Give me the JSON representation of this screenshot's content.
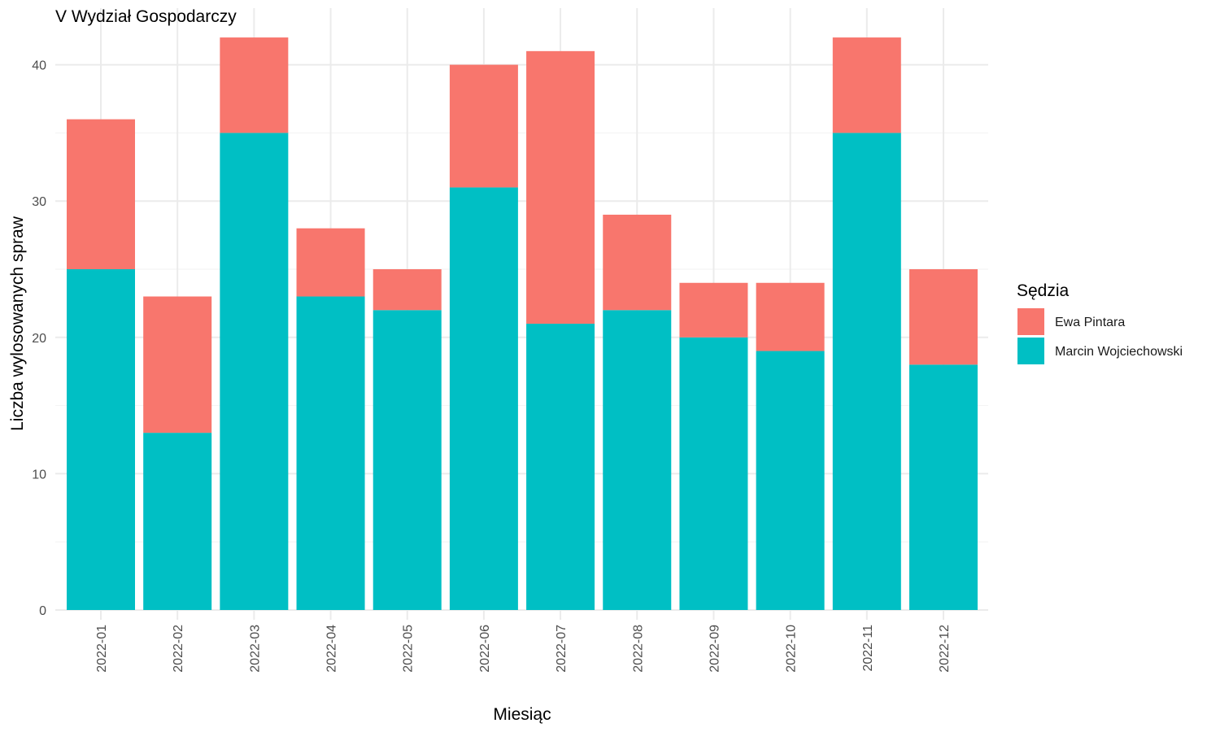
{
  "chart_data": {
    "type": "bar",
    "stacked": true,
    "title": "V Wydział Gospodarczy",
    "xlabel": "Miesiąc",
    "ylabel": "Liczba wylosowanych spraw",
    "ylim": [
      0,
      42
    ],
    "yticks": [
      0,
      10,
      20,
      30,
      40
    ],
    "grid": true,
    "legend_title": "Sędzia",
    "legend_position": "right",
    "categories": [
      "2022-01",
      "2022-02",
      "2022-03",
      "2022-04",
      "2022-05",
      "2022-06",
      "2022-07",
      "2022-08",
      "2022-09",
      "2022-10",
      "2022-11",
      "2022-12"
    ],
    "series": [
      {
        "name": "Marcin Wojciechowski",
        "color": "#00BFC4",
        "values": [
          25,
          13,
          35,
          23,
          22,
          31,
          21,
          22,
          20,
          19,
          35,
          18
        ]
      },
      {
        "name": "Ewa Pintara",
        "color": "#F8766D",
        "values": [
          11,
          10,
          7,
          5,
          3,
          9,
          20,
          7,
          4,
          5,
          7,
          7
        ]
      }
    ],
    "legend_order": [
      "Ewa Pintara",
      "Marcin Wojciechowski"
    ]
  }
}
